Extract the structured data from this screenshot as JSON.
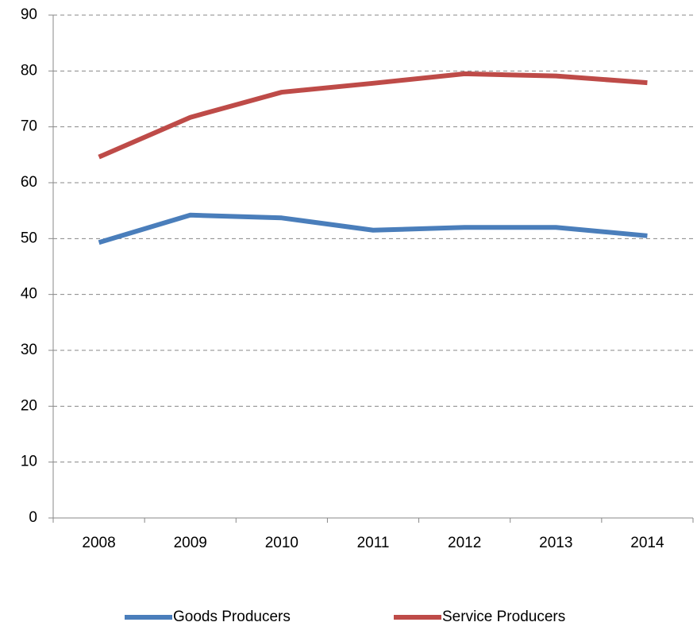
{
  "chart_data": {
    "type": "line",
    "categories": [
      "2008",
      "2009",
      "2010",
      "2011",
      "2012",
      "2013",
      "2014"
    ],
    "series": [
      {
        "name": "Goods Producers",
        "color": "#4a7ebb",
        "values": [
          49.3,
          54.2,
          53.7,
          51.5,
          52.0,
          52.0,
          50.5
        ]
      },
      {
        "name": "Service Producers",
        "color": "#be4b48",
        "values": [
          64.6,
          71.7,
          76.2,
          77.8,
          79.5,
          79.1,
          77.9
        ]
      }
    ],
    "ylim": [
      0,
      90
    ],
    "yticks": [
      0,
      10,
      20,
      30,
      40,
      50,
      60,
      70,
      80,
      90
    ],
    "grid": true,
    "legend": "bottom"
  }
}
